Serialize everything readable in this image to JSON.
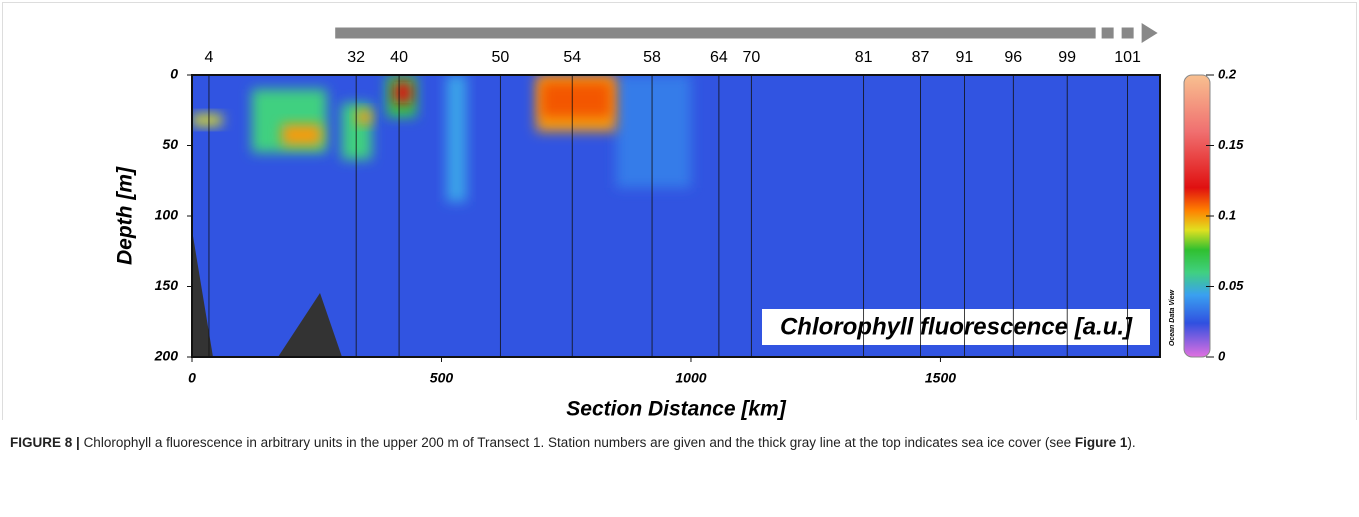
{
  "chart_data": {
    "type": "section",
    "x_label": "Section Distance [km]",
    "y_label": "Depth [m]",
    "xlim": [
      0,
      1940
    ],
    "xticks": [
      0,
      500,
      1000,
      1500
    ],
    "ylim": [
      0,
      200
    ],
    "yticks": [
      0,
      50,
      100,
      150,
      200
    ],
    "y_inverted": true,
    "stations": {
      "labels": [
        "4",
        "32",
        "40",
        "50",
        "54",
        "58",
        "64",
        "70",
        "81",
        "87",
        "91",
        "96",
        "99",
        "101"
      ],
      "x": [
        34,
        329,
        415,
        618,
        762,
        922,
        1056,
        1121,
        1346,
        1460,
        1548,
        1646,
        1754,
        1875
      ]
    },
    "ice_cover": [
      287,
      1811
    ],
    "colorbar": {
      "lim": [
        0,
        0.2
      ],
      "ticks": [
        0,
        0.05,
        0.1,
        0.15,
        0.2
      ]
    },
    "background_value": 0.025,
    "field": [
      {
        "x": [
          850,
          1000
        ],
        "depth": [
          0,
          80
        ],
        "value": 0.035
      },
      {
        "x": [
          510,
          550
        ],
        "depth": [
          0,
          90
        ],
        "value": 0.045
      },
      {
        "x": [
          120,
          270
        ],
        "depth": [
          10,
          55
        ],
        "value": 0.06
      },
      {
        "x": [
          300,
          360
        ],
        "depth": [
          20,
          60
        ],
        "value": 0.06
      },
      {
        "x": [
          390,
          450
        ],
        "depth": [
          0,
          30
        ],
        "value": 0.07
      },
      {
        "x": [
          0,
          60
        ],
        "depth": [
          28,
          36
        ],
        "value": 0.09
      },
      {
        "x": [
          180,
          260
        ],
        "depth": [
          35,
          50
        ],
        "value": 0.1
      },
      {
        "x": [
          330,
          360
        ],
        "depth": [
          25,
          35
        ],
        "value": 0.1
      },
      {
        "x": [
          690,
          850
        ],
        "depth": [
          0,
          40
        ],
        "value": 0.1
      },
      {
        "x": [
          405,
          440
        ],
        "depth": [
          5,
          20
        ],
        "value": 0.12
      },
      {
        "x": [
          700,
          840
        ],
        "depth": [
          5,
          30
        ],
        "value": 0.11
      }
    ],
    "field_label": "Chlorophyll fluorescence [a.u.]",
    "software": "Ocean Data View"
  },
  "caption": {
    "label": "FIGURE 8 |",
    "text": "Chlorophyll a fluorescence in arbitrary units in the upper 200 m of Transect 1. Station numbers are given and the thick gray line at the top indicates sea ice cover (see",
    "ref": "Figure 1",
    "end": ")."
  }
}
